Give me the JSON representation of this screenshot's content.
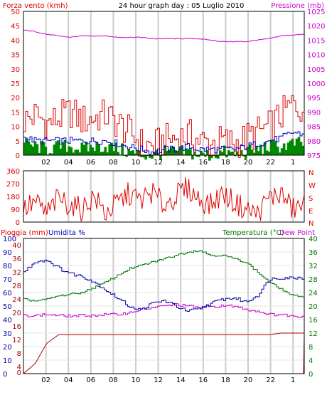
{
  "header": {
    "left_label": "Forza vento (kmh)",
    "center_title": "24 hour graph day : 05 Luglio 2010",
    "right_label": "Pressione (mb)"
  },
  "colors": {
    "wind_speed": "#e00000",
    "wind_avg": "#0000cc",
    "wind_gust_bars": "#008800",
    "pressure": "#cc00cc",
    "direction": "#e00000",
    "rain": "#aa0000",
    "humidity": "#0000aa",
    "temperature": "#007700",
    "dew_point": "#cc00cc",
    "grid": "#cccccc"
  },
  "bottom_header": {
    "rain_label": "Pioggia (mm)",
    "humidity_label": "Umidita %",
    "temperature_label": "Temperatura (°C)",
    "dew_label": "Dew Point"
  },
  "chart_data": [
    {
      "type": "line",
      "x_ticks": [
        "02",
        "04",
        "06",
        "08",
        "10",
        "12",
        "14",
        "16",
        "18",
        "20",
        "22",
        "1"
      ],
      "x": [
        0,
        1,
        2,
        3,
        4,
        5,
        6,
        7,
        8,
        9,
        10,
        11,
        12,
        13,
        14,
        15,
        16,
        17,
        18,
        19,
        20,
        21,
        22,
        23,
        24
      ],
      "left_axis": {
        "label": "Forza vento (kmh)",
        "ticks": [
          0,
          5,
          10,
          15,
          20,
          25,
          30,
          35,
          40,
          45,
          50
        ],
        "ylim": [
          0,
          50
        ]
      },
      "right_axis": {
        "label": "Pressione (mb)",
        "ticks": [
          975,
          980,
          985,
          990,
          995,
          1000,
          1005,
          1010,
          1015,
          1020,
          1025
        ],
        "ylim": [
          975,
          1025
        ]
      },
      "series": [
        {
          "axis": "left",
          "values": [
            12,
            14,
            11,
            13,
            15,
            12,
            13,
            14,
            11,
            8,
            4,
            3,
            5,
            6,
            7,
            5,
            4,
            5,
            4,
            6,
            8,
            10,
            14,
            18,
            16
          ]
        },
        {
          "axis": "left",
          "values": [
            6,
            5,
            5,
            5,
            5,
            5,
            5,
            5,
            4,
            3,
            2,
            1,
            2,
            2,
            3,
            2,
            2,
            2,
            2,
            3,
            4,
            5,
            6,
            8,
            7
          ]
        },
        {
          "axis": "left",
          "values": [
            4,
            3,
            2,
            3,
            3,
            2,
            3,
            3,
            2,
            1,
            0,
            0,
            1,
            1,
            1,
            0,
            0,
            1,
            0,
            1,
            2,
            3,
            3,
            4,
            4
          ]
        },
        {
          "axis": "right",
          "values": [
            1018.5,
            1018.0,
            1017.0,
            1016.5,
            1016.0,
            1016.5,
            1016.5,
            1016.5,
            1016.0,
            1016.0,
            1016.0,
            1015.5,
            1015.5,
            1015.5,
            1015.5,
            1015.5,
            1015.0,
            1014.5,
            1014.5,
            1014.5,
            1015.0,
            1015.5,
            1016.5,
            1016.8,
            1017.0
          ]
        }
      ]
    },
    {
      "type": "line",
      "x_ticks": [],
      "left_axis": {
        "ticks": [
          0,
          90,
          180,
          270,
          360
        ],
        "ylim": [
          0,
          360
        ]
      },
      "right_axis": {
        "ticks": [
          "N",
          "E",
          "S",
          "W",
          "N"
        ]
      },
      "series": [
        {
          "values": [
            90,
            140,
            60,
            170,
            120,
            90,
            180,
            60,
            130,
            200,
            150,
            210,
            120,
            180,
            240,
            160,
            120,
            200,
            140,
            90,
            60,
            170,
            200,
            90,
            120
          ]
        }
      ]
    },
    {
      "type": "line",
      "x_ticks": [
        "02",
        "04",
        "06",
        "08",
        "10",
        "12",
        "14",
        "16",
        "18",
        "20",
        "22",
        "1"
      ],
      "x": [
        0,
        1,
        2,
        3,
        4,
        5,
        6,
        7,
        8,
        9,
        10,
        11,
        12,
        13,
        14,
        15,
        16,
        17,
        18,
        19,
        20,
        21,
        22,
        23,
        24
      ],
      "left_axis_rain": {
        "label": "Pioggia (mm)",
        "ticks": [
          0,
          4,
          8,
          12,
          16,
          20,
          24,
          28,
          32,
          36,
          40
        ],
        "ylim": [
          0,
          40
        ]
      },
      "left_axis_humidity": {
        "label": "Umidita %",
        "ticks": [
          0,
          10,
          20,
          30,
          40,
          50,
          60,
          70,
          80,
          90,
          100
        ],
        "ylim": [
          0,
          100
        ]
      },
      "right_axis": {
        "label": "Temperatura (°C)",
        "ticks": [
          0,
          4,
          8,
          12,
          16,
          20,
          24,
          28,
          32,
          36,
          40
        ],
        "ylim": [
          0,
          40
        ]
      },
      "series": [
        {
          "axis": "humidity",
          "values": [
            75,
            83,
            84,
            78,
            74,
            72,
            68,
            62,
            56,
            50,
            47,
            52,
            54,
            50,
            46,
            48,
            52,
            55,
            56,
            53,
            58,
            70,
            71,
            71,
            71
          ]
        },
        {
          "axis": "right",
          "values": [
            22,
            21.5,
            22,
            23,
            23.5,
            24,
            25.5,
            27,
            29,
            31,
            32,
            33,
            34,
            35,
            36,
            36.5,
            35,
            35,
            34,
            33,
            30,
            27,
            25,
            23,
            23
          ]
        },
        {
          "axis": "right",
          "values": [
            17.2,
            17.2,
            17.5,
            17.2,
            17,
            17.2,
            17.2,
            17.5,
            17.5,
            18,
            19,
            19.5,
            20,
            20.5,
            20,
            19.5,
            19.8,
            20,
            20,
            19,
            18.5,
            17.5,
            17.5,
            17,
            17
          ]
        },
        {
          "axis": "rain",
          "values": [
            0,
            3,
            9,
            11.5,
            11.5,
            11.5,
            11.5,
            11.5,
            11.5,
            11.5,
            11.5,
            11.5,
            11.5,
            11.5,
            11.5,
            11.5,
            11.5,
            11.5,
            11.5,
            11.5,
            11.5,
            11.5,
            12,
            12,
            12
          ]
        }
      ]
    }
  ]
}
